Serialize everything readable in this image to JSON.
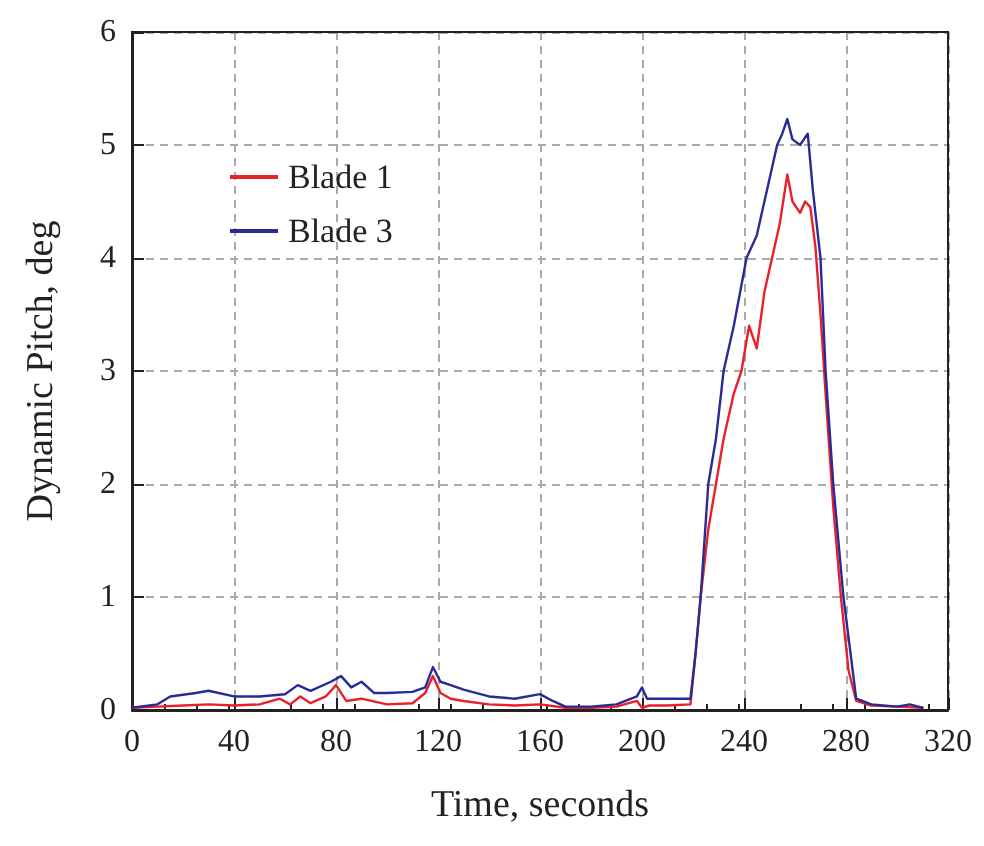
{
  "chart_data": {
    "type": "line",
    "xlabel": "Time, seconds",
    "ylabel": "Dynamic Pitch, deg",
    "xlim": [
      0,
      320
    ],
    "xticks": [
      0,
      40,
      80,
      120,
      160,
      200,
      240,
      280,
      320
    ],
    "ylim": [
      0,
      6
    ],
    "yticks": [
      0,
      1,
      2,
      3,
      4,
      5,
      6
    ],
    "grid": true,
    "legend": "top left",
    "marker": "none",
    "line_style": "solid",
    "series": [
      {
        "name": "Blade 1",
        "color": "#e8202a",
        "x": [
          0,
          10,
          20,
          30,
          40,
          50,
          58,
          62,
          66,
          70,
          76,
          80,
          84,
          90,
          100,
          110,
          115,
          118,
          121,
          125,
          130,
          140,
          150,
          160,
          170,
          180,
          190,
          198,
          200,
          203,
          210,
          219,
          221,
          223,
          226,
          229,
          232,
          236,
          239,
          242,
          245,
          248,
          251,
          254,
          257,
          259,
          262,
          264,
          266,
          268,
          270,
          272,
          275,
          278,
          281,
          284,
          290,
          300,
          310
        ],
        "values": [
          0.02,
          0.03,
          0.04,
          0.05,
          0.04,
          0.05,
          0.1,
          0.05,
          0.12,
          0.06,
          0.12,
          0.22,
          0.08,
          0.1,
          0.05,
          0.06,
          0.15,
          0.3,
          0.15,
          0.1,
          0.08,
          0.05,
          0.04,
          0.05,
          0.02,
          0.02,
          0.03,
          0.08,
          0.02,
          0.04,
          0.04,
          0.05,
          0.5,
          1.0,
          1.6,
          2.0,
          2.4,
          2.8,
          3.0,
          3.4,
          3.2,
          3.7,
          4.0,
          4.3,
          4.74,
          4.5,
          4.4,
          4.5,
          4.45,
          4.1,
          3.5,
          2.8,
          1.8,
          1.0,
          0.35,
          0.08,
          0.04,
          0.03,
          0.02
        ]
      },
      {
        "name": "Blade 3",
        "color": "#2a2a96",
        "x": [
          0,
          10,
          15,
          25,
          30,
          40,
          50,
          60,
          65,
          70,
          78,
          82,
          86,
          90,
          95,
          100,
          110,
          115,
          118,
          121,
          125,
          130,
          140,
          150,
          160,
          165,
          170,
          180,
          190,
          198,
          200,
          202,
          210,
          219,
          221,
          223,
          226,
          229,
          232,
          236,
          241,
          245,
          249,
          253,
          255,
          257,
          259,
          262,
          265,
          267,
          270,
          272,
          275,
          279,
          284,
          290,
          300,
          305,
          310
        ],
        "values": [
          0.02,
          0.05,
          0.12,
          0.15,
          0.17,
          0.12,
          0.12,
          0.14,
          0.22,
          0.17,
          0.25,
          0.3,
          0.2,
          0.25,
          0.15,
          0.15,
          0.16,
          0.2,
          0.38,
          0.25,
          0.22,
          0.18,
          0.12,
          0.1,
          0.14,
          0.08,
          0.03,
          0.03,
          0.05,
          0.12,
          0.2,
          0.1,
          0.1,
          0.1,
          0.5,
          1.0,
          2.0,
          2.4,
          3.0,
          3.4,
          4.0,
          4.2,
          4.6,
          5.0,
          5.1,
          5.23,
          5.05,
          5.0,
          5.1,
          4.6,
          4.0,
          3.0,
          2.0,
          1.0,
          0.1,
          0.05,
          0.03,
          0.05,
          0.02
        ]
      }
    ]
  }
}
